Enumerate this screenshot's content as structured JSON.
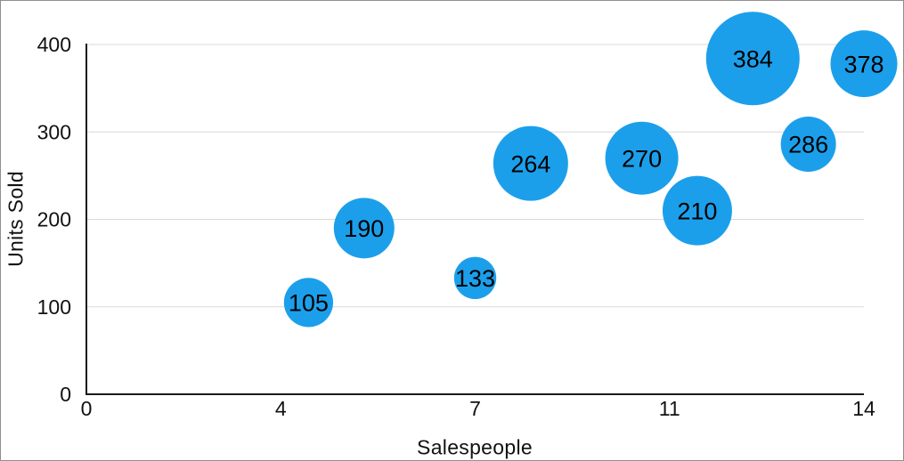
{
  "chart_data": {
    "type": "scatter",
    "variant": "bubble",
    "title": "",
    "xlabel": "Salespeople",
    "ylabel": "Units Sold",
    "xlim": [
      0,
      14
    ],
    "ylim": [
      0,
      400
    ],
    "grid": "horizontal",
    "legend_position": "none",
    "x_ticks": [
      {
        "label": "0",
        "value": 0
      },
      {
        "label": "4",
        "value": 3.5
      },
      {
        "label": "7",
        "value": 7
      },
      {
        "label": "11",
        "value": 10.5
      },
      {
        "label": "14",
        "value": 14
      }
    ],
    "y_ticks": [
      {
        "label": "0",
        "value": 0
      },
      {
        "label": "100",
        "value": 100
      },
      {
        "label": "200",
        "value": 200
      },
      {
        "label": "300",
        "value": 300
      },
      {
        "label": "400",
        "value": 400
      }
    ],
    "points": [
      {
        "x": 4,
        "y": 105,
        "label": "105",
        "radius_px": 27.6
      },
      {
        "x": 5,
        "y": 190,
        "label": "190",
        "radius_px": 34
      },
      {
        "x": 7,
        "y": 133,
        "label": "133",
        "radius_px": 23.7
      },
      {
        "x": 8,
        "y": 264,
        "label": "264",
        "radius_px": 42
      },
      {
        "x": 10,
        "y": 270,
        "label": "270",
        "radius_px": 41
      },
      {
        "x": 11,
        "y": 210,
        "label": "210",
        "radius_px": 39
      },
      {
        "x": 12,
        "y": 384,
        "label": "384",
        "radius_px": 52.5
      },
      {
        "x": 13,
        "y": 286,
        "label": "286",
        "radius_px": 31
      },
      {
        "x": 14,
        "y": 378,
        "label": "378",
        "radius_px": 37.5
      }
    ],
    "colors": {
      "bubble": "#1C9FEB",
      "gridline": "#D9D9D9",
      "axis_line": "#1A1A1A",
      "text": "#111111",
      "background": "#FFFFFF",
      "frame_border": "#8F8F8F"
    }
  }
}
